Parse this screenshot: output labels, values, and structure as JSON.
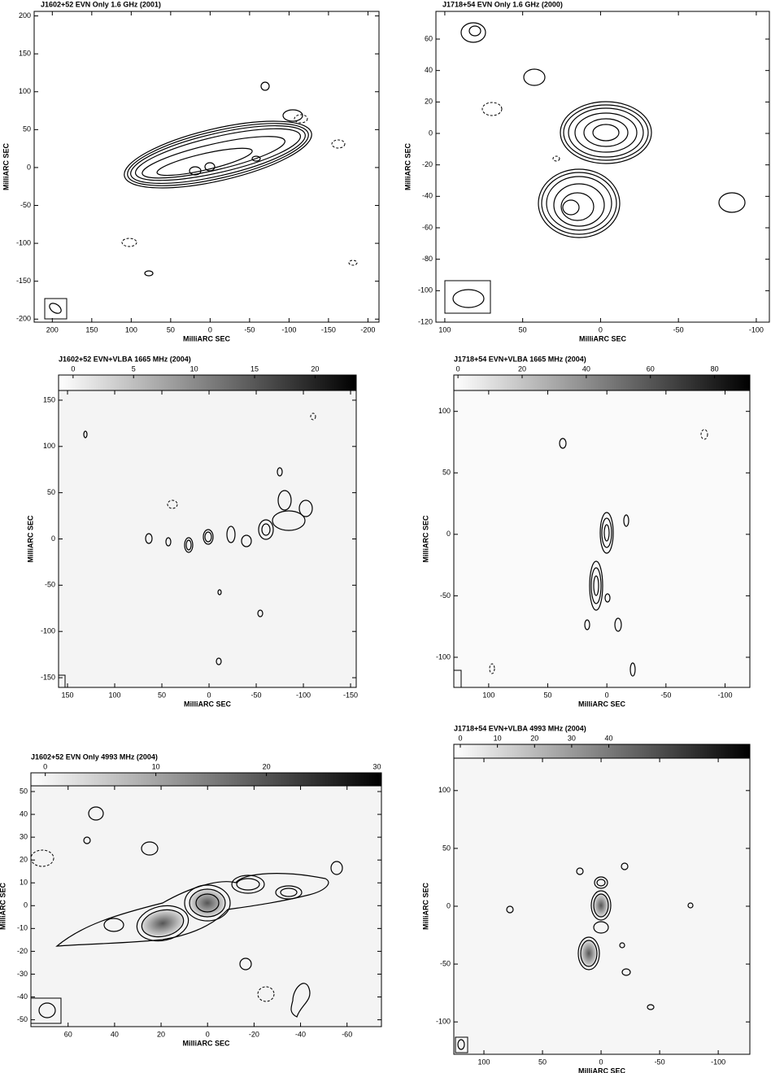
{
  "chart_data": [
    {
      "type": "contour-map",
      "title": "J1602+52  EVN Only  1.6 GHz  (2001)",
      "x_label": "MilliARC SEC",
      "y_label": "MilliARC SEC",
      "xlim": [
        223,
        -214
      ],
      "ylim": [
        -204,
        206
      ],
      "xticks": [
        200,
        150,
        100,
        50,
        0,
        -50,
        -100,
        -150,
        -200
      ],
      "yticks": [
        200,
        150,
        100,
        50,
        0,
        -50,
        -100,
        -150,
        -200
      ]
    },
    {
      "type": "contour-map",
      "title": "J1718+54  EVN Only  1.6 GHz  (2000)",
      "x_label": "MilliARC SEC",
      "y_label": "MilliARC SEC",
      "xlim": [
        105.7,
        -108.4
      ],
      "ylim": [
        -120,
        77.6
      ],
      "xticks": [
        100,
        50,
        0,
        -50,
        -100
      ],
      "yticks": [
        60,
        40,
        20,
        0,
        -20,
        -40,
        -60,
        -80,
        -100,
        -120
      ]
    },
    {
      "type": "contour-map",
      "title": "J1602+52  EVN+VLBA  1665 MHz  (2004)",
      "x_label": "MilliARC SEC",
      "y_label": "MilliARC SEC",
      "xlim": [
        159.5,
        -156
      ],
      "ylim": [
        -160.5,
        160.5
      ],
      "xticks": [
        150,
        100,
        50,
        0,
        -50,
        -100,
        -150
      ],
      "yticks": [
        150,
        100,
        50,
        0,
        -50,
        -100,
        -150
      ],
      "colorbar": {
        "lim": [
          -1.2,
          23.4
        ],
        "ticks": [
          0,
          5,
          10,
          15,
          20
        ]
      }
    },
    {
      "type": "contour-map",
      "title": "J1718+54  EVN+VLBA  1665 MHz  (2004)",
      "x_label": "MilliARC SEC",
      "y_label": "MilliARC SEC",
      "xlim": [
        129.5,
        -121
      ],
      "ylim": [
        -124.5,
        117
      ],
      "xticks": [
        100,
        50,
        0,
        -50,
        -100
      ],
      "yticks": [
        100,
        50,
        0,
        -50,
        -100
      ],
      "colorbar": {
        "lim": [
          -1.3,
          91
        ],
        "ticks": [
          0,
          20,
          40,
          60,
          80
        ]
      }
    },
    {
      "type": "contour-map",
      "title": "J1602+52  EVN Only  4993 MHz  (2004)",
      "x_label": "MilliARC SEC",
      "y_label": "MilliARC SEC",
      "xlim": [
        76,
        -74.8
      ],
      "ylim": [
        -53,
        52.5
      ],
      "xticks": [
        60,
        40,
        20,
        0,
        -20,
        -40,
        -60
      ],
      "yticks": [
        50,
        40,
        30,
        20,
        10,
        0,
        -10,
        -20,
        -30,
        -40,
        -50
      ],
      "colorbar": {
        "lim": [
          -1.3,
          30.4
        ],
        "ticks": [
          0,
          10,
          20,
          30
        ]
      }
    },
    {
      "type": "contour-map",
      "title": "J1718+54  EVN+VLBA  4993 MHz  (2004)",
      "x_label": "MilliARC SEC",
      "y_label": "MilliARC SEC",
      "xlim": [
        125.7,
        -127
      ],
      "ylim": [
        -128,
        128
      ],
      "xticks": [
        100,
        50,
        0,
        -50,
        -100
      ],
      "yticks": [
        100,
        50,
        0,
        -50,
        -100
      ],
      "colorbar": {
        "lim": [
          -1.75,
          78
        ],
        "ticks": [
          0,
          10,
          20,
          30,
          40
        ]
      }
    }
  ]
}
